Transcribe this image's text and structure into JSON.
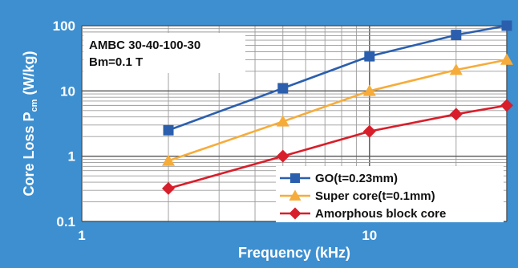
{
  "chart_data": {
    "type": "line",
    "title": "",
    "xlabel": "Frequency (kHz)",
    "ylabel": "Core Loss P",
    "ylabel_subscript": "cm",
    "ylabel_unit": " (W/kg)",
    "xscale": "log",
    "yscale": "log",
    "xlim": [
      1,
      30
    ],
    "ylim": [
      0.1,
      100
    ],
    "x_ticks": [
      {
        "value": 1,
        "label": "1"
      },
      {
        "value": 10,
        "label": "10"
      }
    ],
    "y_ticks": [
      {
        "value": 0.1,
        "label": "0.1"
      },
      {
        "value": 1,
        "label": "1"
      },
      {
        "value": 10,
        "label": "10"
      },
      {
        "value": 100,
        "label": "100"
      }
    ],
    "grid": true,
    "legend_position": "bottom-right",
    "annotation_lines": [
      "AMBC 30-40-100-30",
      "Bm=0.1 T"
    ],
    "series": [
      {
        "name": "GO(t=0.23mm)",
        "color": "#2b5fad",
        "marker": "square",
        "x": [
          2,
          5,
          10,
          20,
          30
        ],
        "y": [
          2.5,
          11,
          34,
          72,
          100
        ]
      },
      {
        "name": "Super core(t=0.1mm)",
        "color": "#f6ac3a",
        "marker": "triangle",
        "x": [
          2,
          5,
          10,
          20,
          30
        ],
        "y": [
          0.85,
          3.4,
          10,
          21,
          30
        ]
      },
      {
        "name": "Amorphous block core",
        "color": "#d81e2a",
        "marker": "diamond",
        "x": [
          2,
          5,
          10,
          20,
          30
        ],
        "y": [
          0.32,
          1.0,
          2.4,
          4.4,
          6.0
        ]
      }
    ]
  }
}
